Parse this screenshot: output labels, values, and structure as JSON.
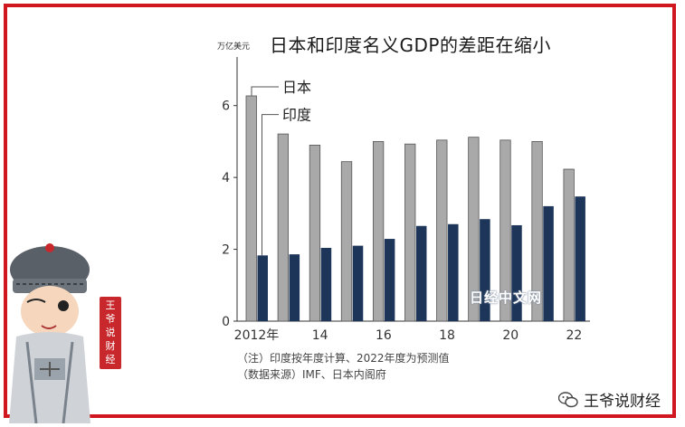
{
  "header": {
    "unit": "万亿美元",
    "title": "日本和印度名义GDP的差距在缩小"
  },
  "chart_data": {
    "type": "bar",
    "title": "日本和印度名义GDP的差距在缩小",
    "ylabel": "万亿美元",
    "xlabel": "",
    "ylim": [
      0,
      7
    ],
    "yticks": [
      0,
      2,
      4,
      6
    ],
    "categories": [
      "2012",
      "2013",
      "2014",
      "2015",
      "2016",
      "2017",
      "2018",
      "2019",
      "2020",
      "2021",
      "2022"
    ],
    "x_tick_labels": [
      "2012年",
      "",
      "14",
      "",
      "16",
      "",
      "18",
      "",
      "20",
      "",
      "22"
    ],
    "series": [
      {
        "name": "日本",
        "color": "#a9a9a9",
        "values": [
          6.27,
          5.21,
          4.9,
          4.44,
          5.0,
          4.93,
          5.04,
          5.12,
          5.04,
          5.0,
          4.23
        ]
      },
      {
        "name": "印度",
        "color": "#1c3558",
        "values": [
          1.83,
          1.86,
          2.04,
          2.1,
          2.29,
          2.65,
          2.7,
          2.84,
          2.67,
          3.2,
          3.47
        ]
      }
    ],
    "grid": false,
    "legend": "callout labels beside first bars"
  },
  "notes": {
    "line1": "（注）印度按年度计算、2022年度为预测值",
    "line2": "（数据来源）IMF、日本内阁府"
  },
  "watermark": "日经中文网",
  "brand": {
    "name": "王爷说财经",
    "icon": "wechat-icon"
  },
  "seal_text": [
    "王",
    "爷",
    "说",
    "财",
    "经"
  ]
}
